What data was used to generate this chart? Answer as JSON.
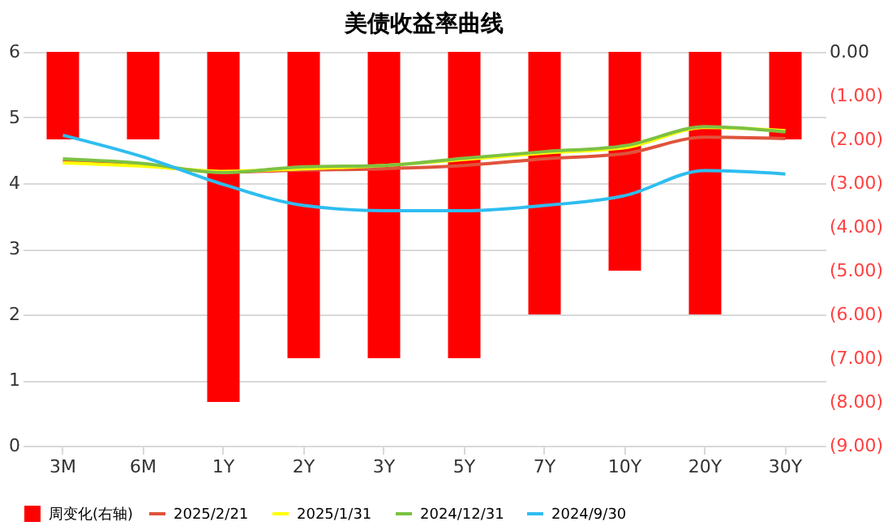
{
  "chart_data": {
    "type": "line",
    "title": "美债收益率曲线",
    "categories": [
      "3M",
      "6M",
      "1Y",
      "2Y",
      "3Y",
      "5Y",
      "7Y",
      "10Y",
      "20Y",
      "30Y"
    ],
    "series": [
      {
        "name": "周变化(右轴)",
        "type": "bar",
        "axis": "y2",
        "color": "#ff0000",
        "values": [
          -2,
          -2,
          -8,
          -7,
          -7,
          -7,
          -6,
          -5,
          -6,
          -2
        ]
      },
      {
        "name": "2025/2/21",
        "color": "#e0533c",
        "values": [
          4.33,
          4.27,
          4.17,
          4.2,
          4.22,
          4.27,
          4.37,
          4.45,
          4.7,
          4.68
        ]
      },
      {
        "name": "2025/1/31",
        "color": "#ffff00",
        "values": [
          4.31,
          4.26,
          4.18,
          4.22,
          4.27,
          4.36,
          4.46,
          4.54,
          4.85,
          4.8
        ]
      },
      {
        "name": "2024/12/31",
        "color": "#7cc142",
        "values": [
          4.37,
          4.3,
          4.16,
          4.25,
          4.27,
          4.38,
          4.48,
          4.57,
          4.86,
          4.78
        ]
      },
      {
        "name": "2024/9/30",
        "color": "#2ebdf0",
        "values": [
          4.73,
          4.4,
          3.98,
          3.66,
          3.58,
          3.58,
          3.66,
          3.81,
          4.19,
          4.14
        ]
      }
    ],
    "ylim": [
      0,
      6
    ],
    "yticks": [
      0,
      1,
      2,
      3,
      4,
      5,
      6
    ],
    "y2lim": [
      -9,
      0
    ],
    "y2ticks": [
      {
        "value": 0,
        "label": "0.00"
      },
      {
        "value": -1,
        "label": "(1.00)"
      },
      {
        "value": -2,
        "label": "(2.00)"
      },
      {
        "value": -3,
        "label": "(3.00)"
      },
      {
        "value": -4,
        "label": "(4.00)"
      },
      {
        "value": -5,
        "label": "(5.00)"
      },
      {
        "value": -6,
        "label": "(6.00)"
      },
      {
        "value": -7,
        "label": "(7.00)"
      },
      {
        "value": -8,
        "label": "(8.00)"
      },
      {
        "value": -9,
        "label": "(9.00)"
      }
    ],
    "grid": "y",
    "legend": "bottom",
    "line_style": "solid",
    "marker": "none"
  }
}
